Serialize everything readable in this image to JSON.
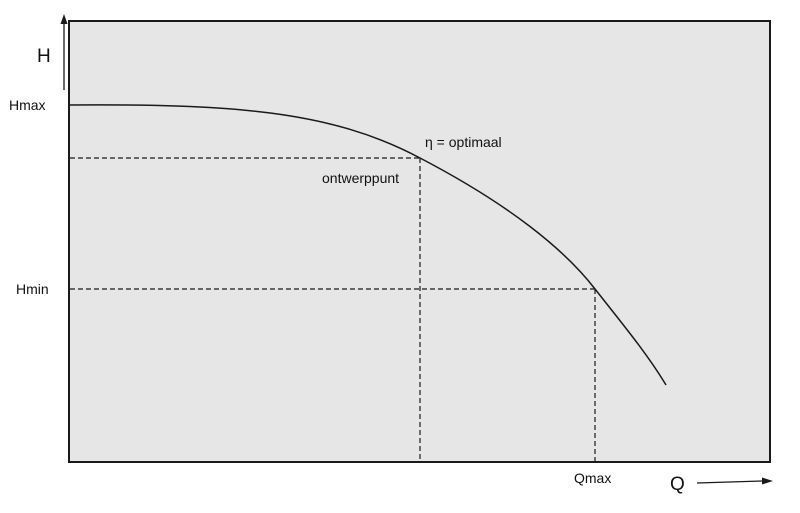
{
  "diagram": {
    "y_axis_label": "H",
    "x_axis_label": "Q",
    "hmax_label": "Hmax",
    "hmin_label": "Hmin",
    "qmax_label": "Qmax",
    "design_point_label": "ontwerppunt",
    "efficiency_label": "η = optimaal"
  },
  "colors": {
    "plot_background": "#e6e6e6",
    "stroke": "#1a1a1a"
  }
}
